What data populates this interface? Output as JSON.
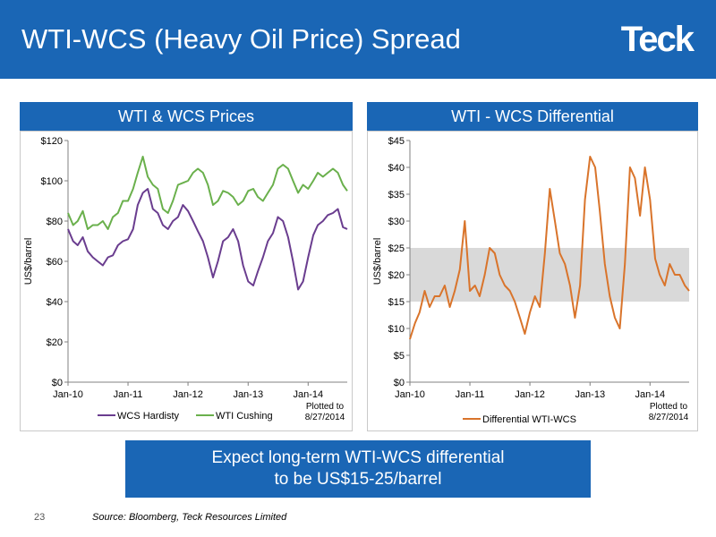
{
  "slide": {
    "title": "WTI-WCS (Heavy Oil Price) Spread",
    "logo_text": "Teck",
    "callout_line1": "Expect long-term WTI-WCS differential",
    "callout_line2": "to be US$15-25/barrel",
    "page_number": "23",
    "source": "Source: Bloomberg, Teck Resources Limited",
    "colors": {
      "header_blue": "#1a66b5",
      "wcs_purple": "#6a3d8f",
      "wti_green": "#6ab04c",
      "diff_orange": "#d9742b",
      "band_gray": "#d9d9d9"
    }
  },
  "chart_data": [
    {
      "type": "line",
      "title": "WTI & WCS Prices",
      "ylabel": "US$/barrel",
      "ylim": [
        0,
        120
      ],
      "yticks": [
        "$0",
        "$20",
        "$40",
        "$60",
        "$80",
        "$100",
        "$120"
      ],
      "xlim": [
        "2010-01-01",
        "2014-08-27"
      ],
      "xticks": [
        "Jan-10",
        "Jan-11",
        "Jan-12",
        "Jan-13",
        "Jan-14"
      ],
      "note_line1": "Plotted to",
      "note_line2": "8/27/2014",
      "x": [
        "2010-01-01",
        "2010-02-01",
        "2010-03-01",
        "2010-04-01",
        "2010-05-01",
        "2010-06-01",
        "2010-07-01",
        "2010-08-01",
        "2010-09-01",
        "2010-10-01",
        "2010-11-01",
        "2010-12-01",
        "2011-01-01",
        "2011-02-01",
        "2011-03-01",
        "2011-04-01",
        "2011-05-01",
        "2011-06-01",
        "2011-07-01",
        "2011-08-01",
        "2011-09-01",
        "2011-10-01",
        "2011-11-01",
        "2011-12-01",
        "2012-01-01",
        "2012-02-01",
        "2012-03-01",
        "2012-04-01",
        "2012-05-01",
        "2012-06-01",
        "2012-07-01",
        "2012-08-01",
        "2012-09-01",
        "2012-10-01",
        "2012-11-01",
        "2012-12-01",
        "2013-01-01",
        "2013-02-01",
        "2013-03-01",
        "2013-04-01",
        "2013-05-01",
        "2013-06-01",
        "2013-07-01",
        "2013-08-01",
        "2013-09-01",
        "2013-10-01",
        "2013-11-01",
        "2013-12-01",
        "2014-01-01",
        "2014-02-01",
        "2014-03-01",
        "2014-04-01",
        "2014-05-01",
        "2014-06-01",
        "2014-07-01",
        "2014-08-01",
        "2014-08-27"
      ],
      "series": [
        {
          "name": "WCS Hardisty",
          "color": "#6a3d8f",
          "values": [
            76,
            70,
            68,
            72,
            65,
            62,
            60,
            58,
            62,
            63,
            68,
            70,
            71,
            76,
            88,
            94,
            96,
            86,
            84,
            78,
            76,
            80,
            82,
            88,
            85,
            80,
            75,
            70,
            62,
            52,
            60,
            70,
            72,
            76,
            70,
            58,
            50,
            48,
            55,
            62,
            70,
            74,
            82,
            80,
            72,
            60,
            46,
            50,
            62,
            73,
            78,
            80,
            83,
            84,
            86,
            77,
            76
          ]
        },
        {
          "name": "WTI Cushing",
          "color": "#6ab04c",
          "values": [
            84,
            78,
            80,
            85,
            76,
            78,
            78,
            80,
            76,
            82,
            84,
            90,
            90,
            96,
            104,
            112,
            102,
            98,
            96,
            86,
            84,
            90,
            98,
            99,
            100,
            104,
            106,
            104,
            98,
            88,
            90,
            95,
            94,
            92,
            88,
            90,
            95,
            96,
            92,
            90,
            94,
            98,
            106,
            108,
            106,
            100,
            94,
            98,
            96,
            100,
            104,
            102,
            104,
            106,
            104,
            98,
            95
          ]
        }
      ]
    },
    {
      "type": "line",
      "title": "WTI - WCS Differential",
      "ylabel": "US$/barrel",
      "ylim": [
        0,
        45
      ],
      "yticks": [
        "$0",
        "$5",
        "$10",
        "$15",
        "$20",
        "$25",
        "$30",
        "$35",
        "$40",
        "$45"
      ],
      "band": [
        15,
        25
      ],
      "xlim": [
        "2010-01-01",
        "2014-08-27"
      ],
      "xticks": [
        "Jan-10",
        "Jan-11",
        "Jan-12",
        "Jan-13",
        "Jan-14"
      ],
      "note_line1": "Plotted to",
      "note_line2": "8/27/2014",
      "x": [
        "2010-01-01",
        "2010-02-01",
        "2010-03-01",
        "2010-04-01",
        "2010-05-01",
        "2010-06-01",
        "2010-07-01",
        "2010-08-01",
        "2010-09-01",
        "2010-10-01",
        "2010-11-01",
        "2010-12-01",
        "2011-01-01",
        "2011-02-01",
        "2011-03-01",
        "2011-04-01",
        "2011-05-01",
        "2011-06-01",
        "2011-07-01",
        "2011-08-01",
        "2011-09-01",
        "2011-10-01",
        "2011-11-01",
        "2011-12-01",
        "2012-01-01",
        "2012-02-01",
        "2012-03-01",
        "2012-04-01",
        "2012-05-01",
        "2012-06-01",
        "2012-07-01",
        "2012-08-01",
        "2012-09-01",
        "2012-10-01",
        "2012-11-01",
        "2012-12-01",
        "2013-01-01",
        "2013-02-01",
        "2013-03-01",
        "2013-04-01",
        "2013-05-01",
        "2013-06-01",
        "2013-07-01",
        "2013-08-01",
        "2013-09-01",
        "2013-10-01",
        "2013-11-01",
        "2013-12-01",
        "2014-01-01",
        "2014-02-01",
        "2014-03-01",
        "2014-04-01",
        "2014-05-01",
        "2014-06-01",
        "2014-07-01",
        "2014-08-01",
        "2014-08-27"
      ],
      "series": [
        {
          "name": "Differential WTI-WCS",
          "color": "#d9742b",
          "values": [
            8,
            11,
            13,
            17,
            14,
            16,
            16,
            18,
            14,
            17,
            21,
            30,
            17,
            18,
            16,
            20,
            25,
            24,
            20,
            18,
            17,
            15,
            12,
            9,
            13,
            16,
            14,
            24,
            36,
            30,
            24,
            22,
            18,
            12,
            18,
            34,
            42,
            40,
            32,
            22,
            16,
            12,
            10,
            22,
            40,
            38,
            31,
            40,
            34,
            23,
            20,
            18,
            22,
            20,
            20,
            18,
            17
          ]
        }
      ]
    }
  ]
}
